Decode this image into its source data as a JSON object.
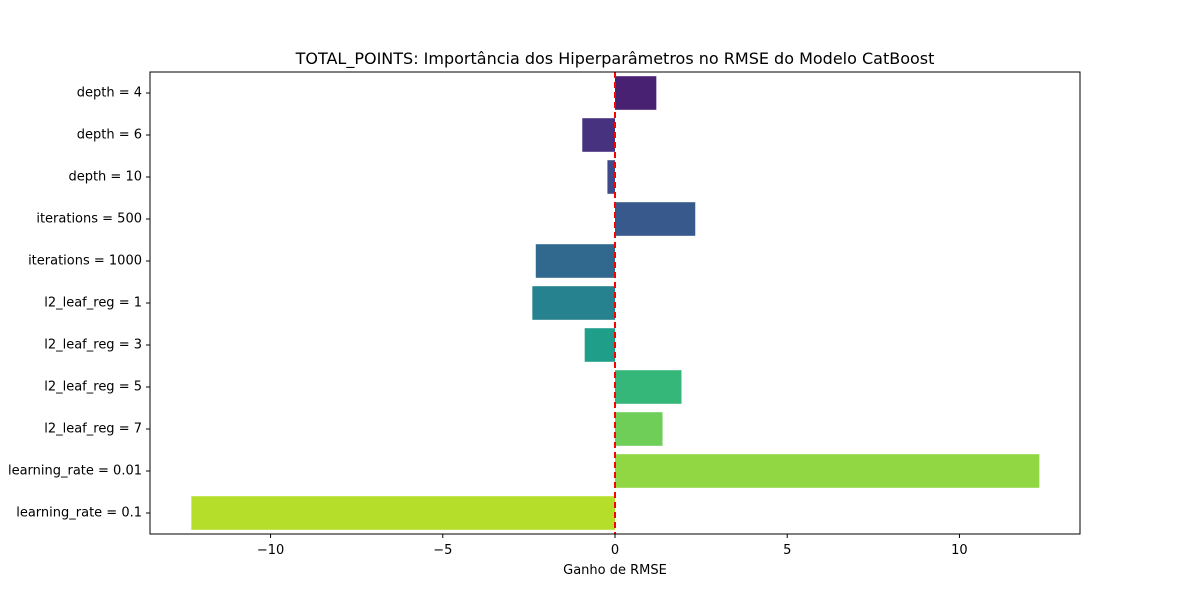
{
  "chart_data": {
    "type": "bar",
    "orientation": "horizontal",
    "title": "TOTAL_POINTS: Importância dos Hiperparâmetros no RMSE do Modelo CatBoost",
    "xlabel": "Ganho de RMSE",
    "ylabel": "",
    "categories": [
      "depth = 4",
      "depth = 6",
      "depth = 10",
      "iterations = 500",
      "iterations = 1000",
      "l2_leaf_reg = 1",
      "l2_leaf_reg = 3",
      "l2_leaf_reg = 5",
      "l2_leaf_reg = 7",
      "learning_rate = 0.01",
      "learning_rate = 0.1"
    ],
    "values": [
      1.2,
      -0.95,
      -0.22,
      2.33,
      -2.3,
      -2.4,
      -0.88,
      1.93,
      1.38,
      12.32,
      -12.3
    ],
    "colors": [
      "#482173",
      "#46327e",
      "#3e4a89",
      "#38598c",
      "#31688e",
      "#26828e",
      "#1f9e89",
      "#35b779",
      "#6ece58",
      "#90d743",
      "#b5de2b"
    ],
    "xlim": [
      -13.5,
      13.5
    ],
    "xticks": [
      -10,
      -5,
      0,
      5,
      10
    ],
    "xtick_labels": [
      "−10",
      "−5",
      "0",
      "5",
      "10"
    ],
    "reference_line": {
      "x": 0,
      "color": "#ff0000",
      "style": "dashed"
    },
    "grid": false,
    "legend": "none"
  }
}
